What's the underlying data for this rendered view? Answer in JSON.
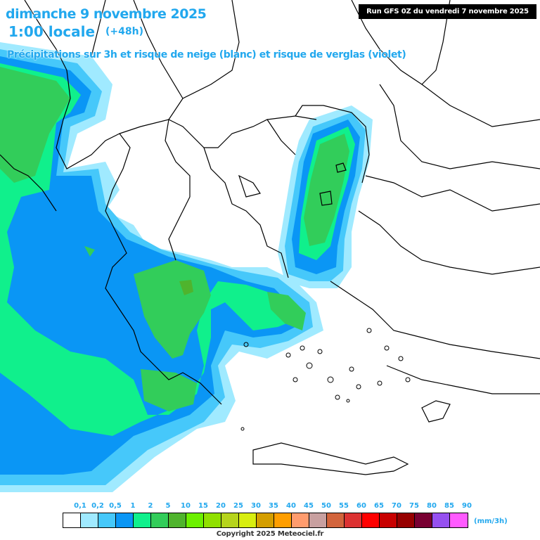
{
  "header": {
    "date": "dimanche 9 novembre 2025",
    "time": "1:00 locale",
    "lead": "(+48h)",
    "description": "Précipitations sur 3h et risque de neige (blanc) et risque de verglas (violet)",
    "run": "Run GFS 0Z du vendredi 7 novembre 2025"
  },
  "legend": {
    "unit": "(mm/3h)",
    "ticks": [
      "0,1",
      "0,2",
      "0,5",
      "1",
      "2",
      "5",
      "10",
      "15",
      "20",
      "25",
      "30",
      "35",
      "40",
      "45",
      "50",
      "55",
      "60",
      "65",
      "70",
      "75",
      "80",
      "85",
      "90"
    ],
    "colors": [
      "#ffffff",
      "#a0eaff",
      "#46c8fa",
      "#0a96f5",
      "#10f08c",
      "#32cd5a",
      "#4fb42d",
      "#6cf000",
      "#90e000",
      "#b6d41c",
      "#d8ee10",
      "#d49e00",
      "#ff9e00",
      "#ff9c6e",
      "#c8a0a0",
      "#d2643c",
      "#dc3232",
      "#ff0000",
      "#c80000",
      "#960000",
      "#780032",
      "#9650f0",
      "#ff5aff"
    ]
  },
  "copyright": "Copyright 2025 Meteociel.fr"
}
